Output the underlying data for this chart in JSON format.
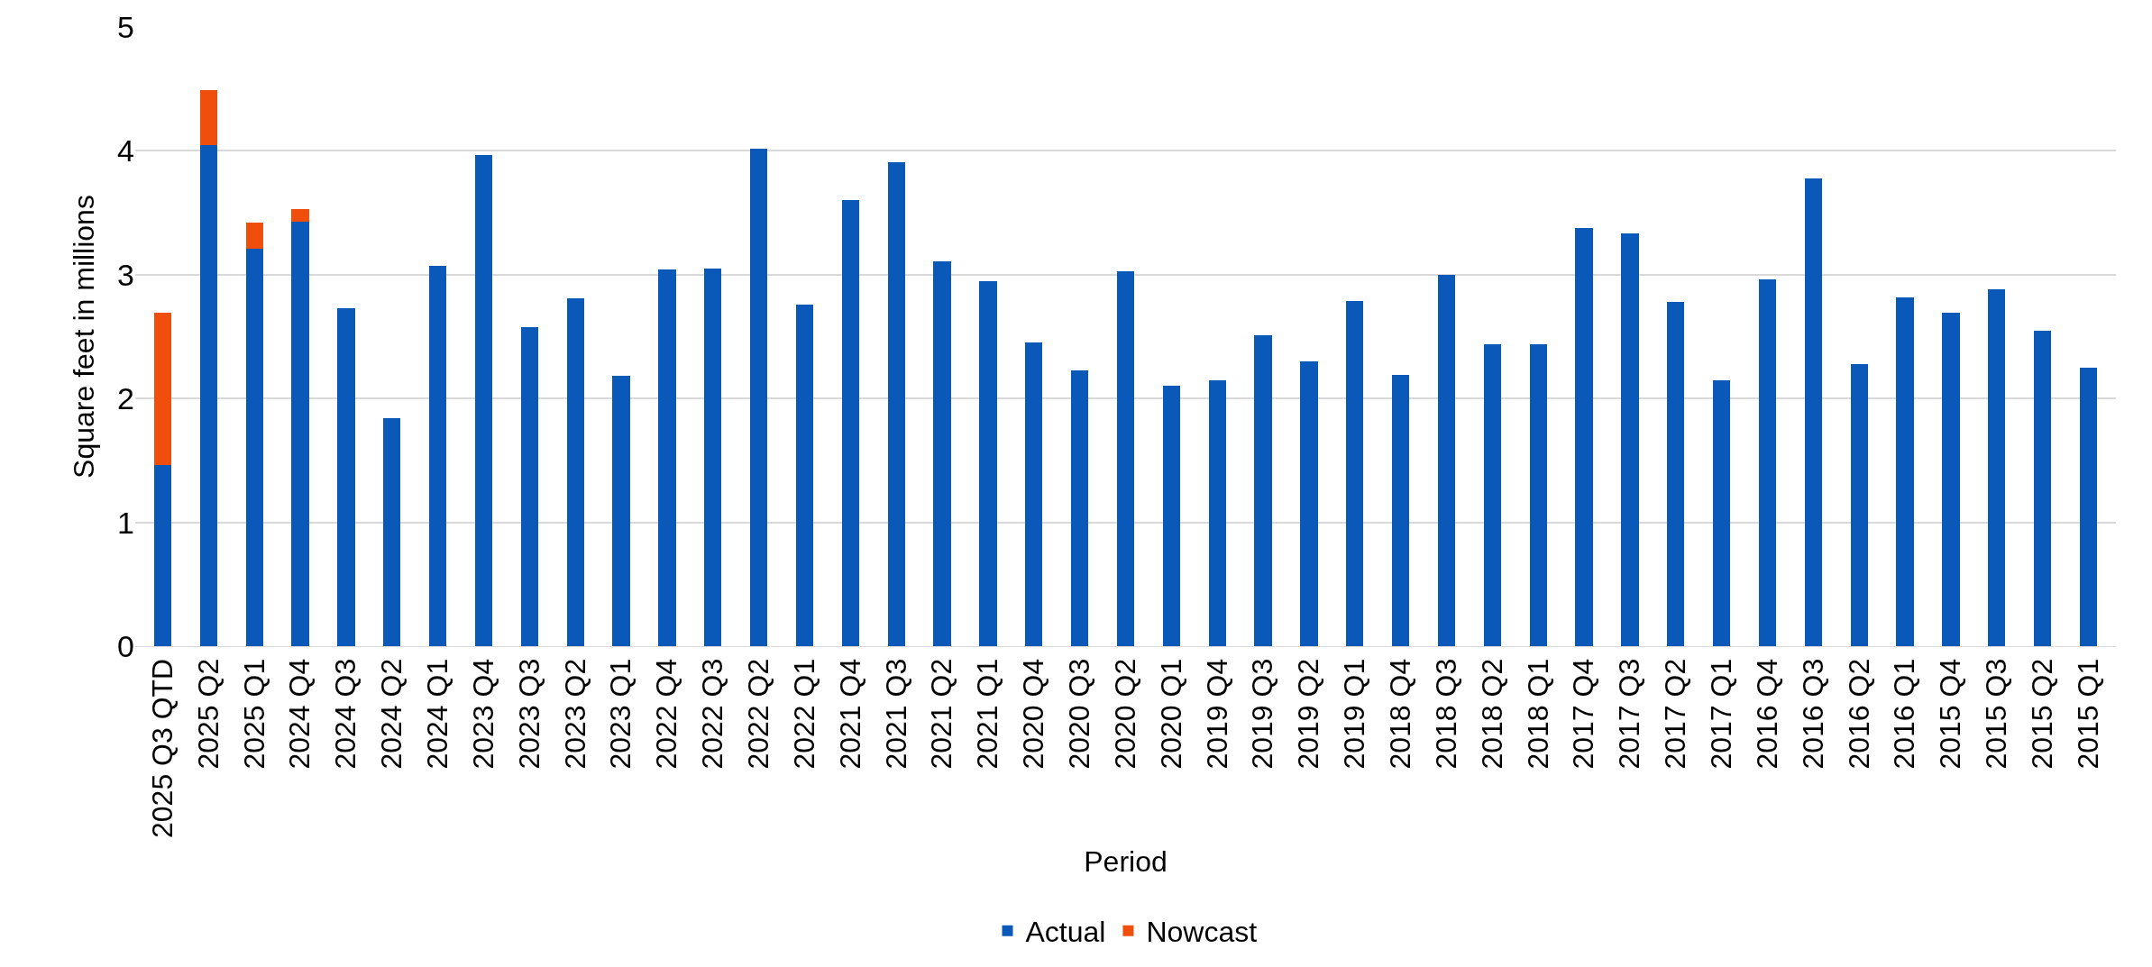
{
  "chart_data": {
    "type": "bar",
    "stacked": true,
    "xlabel": "Period",
    "ylabel": "Square feet in millions",
    "categories": [
      "2025 Q3 QTD",
      "2025 Q2",
      "2025 Q1",
      "2024 Q4",
      "2024 Q3",
      "2024 Q2",
      "2024 Q1",
      "2023 Q4",
      "2023 Q3",
      "2023 Q2",
      "2023 Q1",
      "2022 Q4",
      "2022 Q3",
      "2022 Q2",
      "2022 Q1",
      "2021 Q4",
      "2021 Q3",
      "2021 Q2",
      "2021 Q1",
      "2020 Q4",
      "2020 Q3",
      "2020 Q2",
      "2020 Q1",
      "2019 Q4",
      "2019 Q3",
      "2019 Q2",
      "2019 Q1",
      "2018 Q4",
      "2018 Q3",
      "2018 Q2",
      "2018 Q1",
      "2017 Q4",
      "2017 Q3",
      "2017 Q2",
      "2017 Q1",
      "2016 Q4",
      "2016 Q3",
      "2016 Q2",
      "2016 Q1",
      "2015 Q4",
      "2015 Q3",
      "2015 Q2",
      "2015 Q1"
    ],
    "series": [
      {
        "name": "Actual",
        "color": "#0a58b8",
        "values": [
          1.46,
          4.05,
          3.21,
          3.43,
          2.73,
          1.84,
          3.07,
          3.97,
          2.58,
          2.81,
          2.18,
          3.04,
          3.05,
          4.02,
          2.76,
          3.6,
          3.91,
          3.11,
          2.95,
          2.45,
          2.23,
          3.03,
          2.1,
          2.15,
          2.51,
          2.3,
          2.79,
          2.19,
          3.0,
          2.44,
          2.44,
          3.38,
          3.33,
          2.78,
          2.15,
          2.96,
          3.78,
          2.28,
          2.82,
          2.69,
          2.88,
          2.55,
          2.25
        ]
      },
      {
        "name": "Nowcast",
        "color": "#f04e0c",
        "values": [
          1.23,
          0.44,
          0.21,
          0.1,
          null,
          null,
          null,
          null,
          null,
          null,
          null,
          null,
          null,
          null,
          null,
          null,
          null,
          null,
          null,
          null,
          null,
          null,
          null,
          null,
          null,
          null,
          null,
          null,
          null,
          null,
          null,
          null,
          null,
          null,
          null,
          null,
          null,
          null,
          null,
          null,
          null,
          null,
          null
        ]
      }
    ],
    "ylim": [
      0,
      5
    ],
    "yticks": [
      0,
      1,
      2,
      3,
      4,
      5
    ],
    "grid": "y",
    "legend": "bottom"
  }
}
